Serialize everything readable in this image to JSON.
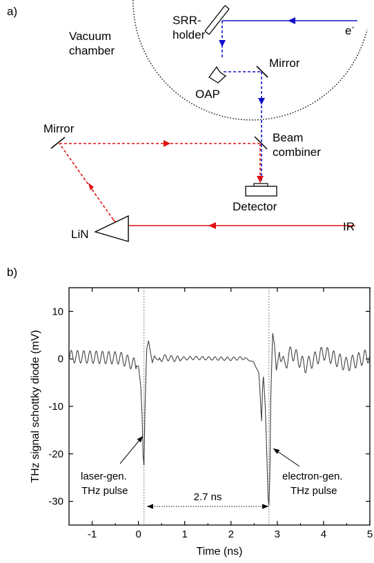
{
  "panel_a": {
    "panel_label": "a)",
    "labels": {
      "srr_line1": "SRR-",
      "srr_line2": "holder",
      "electron": "e",
      "electron_sup": "-",
      "vacuum_line1": "Vacuum",
      "vacuum_line2": "chamber",
      "mirror_top": "Mirror",
      "oap": "OAP",
      "mirror_left": "Mirror",
      "beam_line1": "Beam",
      "beam_line2": "combiner",
      "detector": "Detector",
      "lin": "LiN",
      "ir": "IR"
    },
    "colors": {
      "electron_beam": "#1010cc",
      "laser_beam": "#e01010"
    }
  },
  "panel_b": {
    "panel_label": "b)",
    "annotations": {
      "left_line1": "laser-gen.",
      "left_line2": "THz pulse",
      "right_line1": "electron-gen.",
      "right_line2": "THz pulse",
      "gap": "2.7 ns"
    },
    "colors": {
      "signal": "#404040"
    }
  },
  "chart_data": {
    "type": "line",
    "title": "",
    "xlabel": "Time (ns)",
    "ylabel": "THz signal schottky diode (mV)",
    "xlim": [
      -1.5,
      5
    ],
    "ylim": [
      -35,
      15
    ],
    "xticks": [
      "-1",
      "0",
      "1",
      "2",
      "3",
      "4",
      "5"
    ],
    "yticks": [
      "10",
      "0",
      "-10",
      "-20",
      "-30"
    ],
    "grid": false,
    "markers_x": [
      0.12,
      2.82
    ],
    "series": [
      {
        "x": [
          -1.5,
          -0.4,
          0.0,
          0.05,
          0.08,
          0.1,
          0.12,
          0.14,
          0.18,
          0.22,
          0.26,
          0.3,
          0.35,
          0.42,
          0.55,
          0.8,
          1.2,
          1.6,
          2.0,
          2.3,
          2.5,
          2.6,
          2.62,
          2.66,
          2.68,
          2.7,
          2.74,
          2.78,
          2.8,
          2.82,
          2.84,
          2.86,
          2.9,
          2.94,
          2.98,
          3.05,
          3.15,
          3.3,
          3.6,
          4.0,
          4.5,
          5.0
        ],
        "y": [
          0.5,
          0.2,
          -1.5,
          -6.0,
          -12.0,
          -20.0,
          -22.5,
          -11.0,
          2.0,
          4.0,
          1.5,
          -1.0,
          0.8,
          -0.4,
          0.3,
          0.0,
          0.2,
          0.1,
          0.0,
          0.2,
          -0.8,
          -3.0,
          -6.0,
          -13.0,
          -6.5,
          -3.5,
          -10.0,
          -22.0,
          -29.0,
          -31.0,
          -24.0,
          -8.0,
          5.5,
          3.0,
          -2.5,
          1.8,
          -1.5,
          1.5,
          -1.5,
          1.3,
          -1.2,
          0.8
        ]
      }
    ]
  }
}
